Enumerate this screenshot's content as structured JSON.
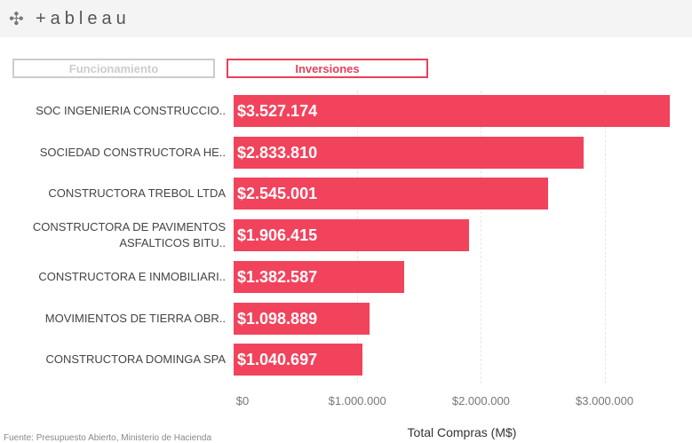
{
  "logo": "+ableau",
  "chart_data": {
    "type": "bar",
    "orientation": "horizontal",
    "buttons": [
      "Funcionamiento",
      "Inversiones"
    ],
    "categories": [
      "SOC INGENIERIA CONSTRUCCIO..",
      "SOCIEDAD CONSTRUCTORA HE..",
      "CONSTRUCTORA TREBOL LTDA",
      "CONSTRUCTORA DE PAVIMENTOS ASFALTICOS BITU..",
      "CONSTRUCTORA E INMOBILIARI..",
      "MOVIMIENTOS DE TIERRA OBR..",
      "CONSTRUCTORA DOMINGA SPA"
    ],
    "values": [
      3527174,
      2833810,
      2545001,
      1906415,
      1382587,
      1098889,
      1040697
    ],
    "value_labels": [
      "$3.527.174",
      "$2.833.810",
      "$2.545.001",
      "$1.906.415",
      "$1.382.587",
      "$1.098.889",
      "$1.040.697"
    ],
    "color": "#f2435c",
    "xlim": [
      0,
      3700000
    ],
    "xticks": [
      {
        "value": 0,
        "label": "$0"
      },
      {
        "value": 1000000,
        "label": "$1.000.000"
      },
      {
        "value": 2000000,
        "label": "$2.000.000"
      },
      {
        "value": 3000000,
        "label": "$3.000.000"
      }
    ],
    "xlabel": "Total Compras (M$)",
    "source": "Fuente: Presupuesto Abierto, Ministerio de Hacienda",
    "grid": true
  }
}
